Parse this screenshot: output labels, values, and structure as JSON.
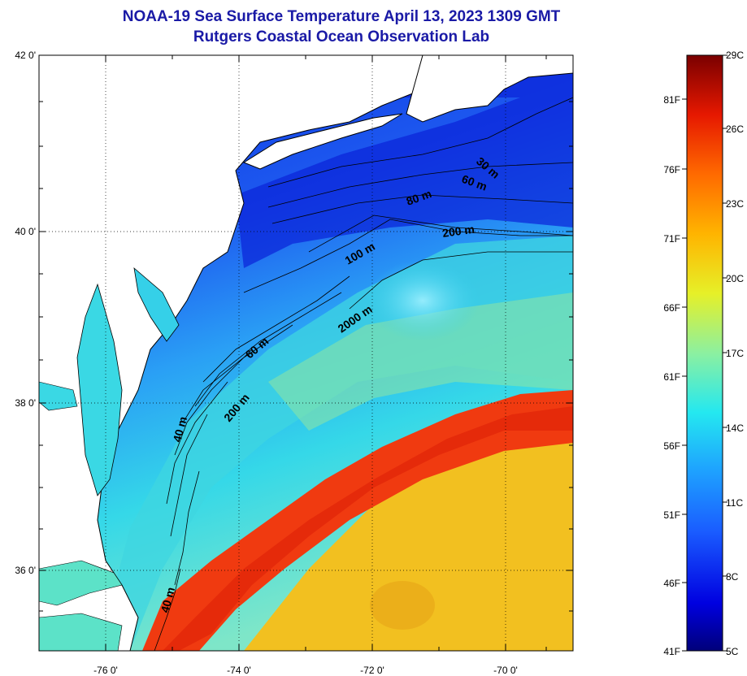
{
  "title": {
    "line1": "NOAA-19 Sea Surface Temperature April 13, 2023 1309 GMT",
    "line2": "Rutgers Coastal Ocean Observation Lab"
  },
  "axes": {
    "lat_labels": [
      "42 0'",
      "40 0'",
      "38 0'",
      "36 0'"
    ],
    "lon_labels": [
      "-76 0'",
      "-74 0'",
      "-72 0'",
      "-70 0'"
    ]
  },
  "colorbar": {
    "celsius": [
      "29C",
      "26C",
      "23C",
      "20C",
      "17C",
      "14C",
      "11C",
      "8C",
      "5C"
    ],
    "fahrenheit": [
      "81F",
      "76F",
      "71F",
      "66F",
      "61F",
      "56F",
      "51F",
      "46F",
      "41F"
    ],
    "colors": [
      "#00007a",
      "#0000e0",
      "#1a5cff",
      "#1ea0ff",
      "#24e8f0",
      "#8cf0a0",
      "#e6f028",
      "#ffb400",
      "#ff6a00",
      "#e61800",
      "#7a0000"
    ]
  },
  "contour_labels": [
    "30 m",
    "60 m",
    "80 m",
    "200 m",
    "100 m",
    "2000 m",
    "60 m",
    "200 m",
    "40 m",
    "40 m"
  ],
  "colors": {
    "title": "#1a1aa6",
    "land": "#ffffff",
    "ocean_cold": "#1f4fe6",
    "shelf": "#2a9aff",
    "gulf_stream": "#f03a10",
    "warm_sargasso": "#f5c020"
  }
}
